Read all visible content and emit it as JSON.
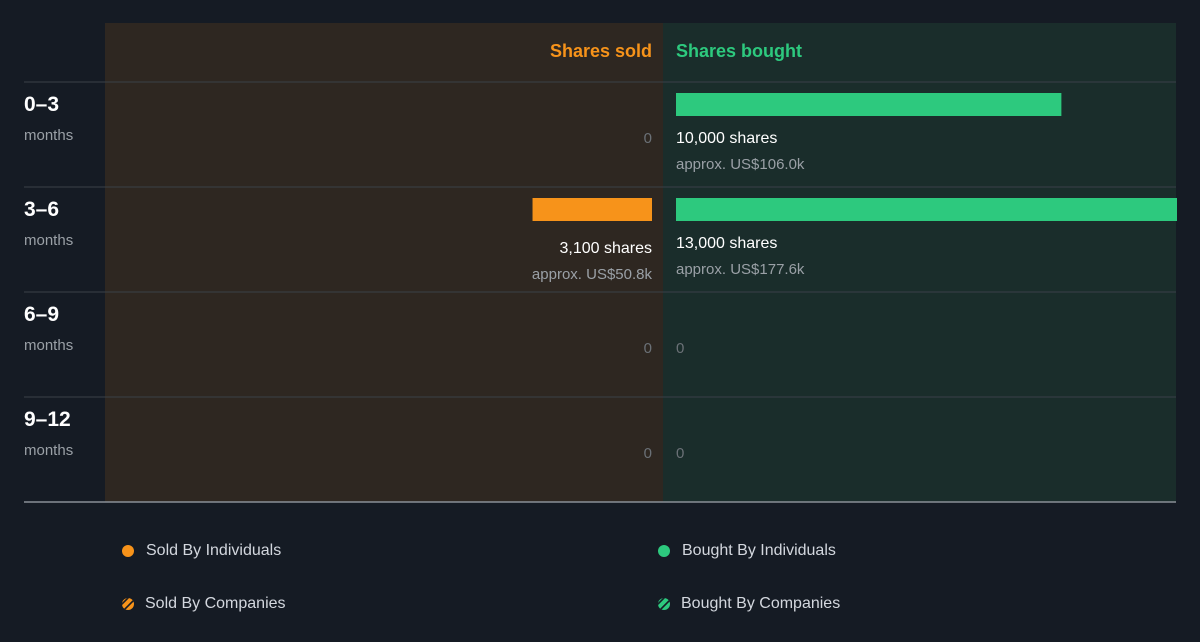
{
  "colors": {
    "background": "#151b24",
    "sold_panel": "#2e2721",
    "bought_panel": "#1a2d2b",
    "sold": "#f7931a",
    "bought": "#2dc97e",
    "grid": "#3a4048",
    "muted": "#9aa0a6",
    "zero": "#6b7177",
    "text": "#ffffff"
  },
  "chart_data": {
    "type": "bar",
    "layout": "diverging-horizontal",
    "headers": {
      "sold": "Shares sold",
      "bought": "Shares bought"
    },
    "categories": [
      {
        "period": "0–3",
        "unit": "months"
      },
      {
        "period": "3–6",
        "unit": "months"
      },
      {
        "period": "6–9",
        "unit": "months"
      },
      {
        "period": "9–12",
        "unit": "months"
      }
    ],
    "series": [
      {
        "name": "Shares sold",
        "values": [
          0,
          3100,
          0,
          0
        ],
        "labels": [
          "0",
          "3,100 shares",
          "0",
          "0"
        ],
        "approx": [
          "",
          "approx. US$50.8k",
          "",
          ""
        ]
      },
      {
        "name": "Shares bought",
        "values": [
          10000,
          13000,
          0,
          0
        ],
        "labels": [
          "10,000 shares",
          "13,000 shares",
          "0",
          "0"
        ],
        "approx": [
          "approx. US$106.0k",
          "approx. US$177.6k",
          "",
          ""
        ]
      }
    ],
    "max_value": 13000
  },
  "legend": [
    {
      "label": "Sold By Individuals",
      "icon": "sold-individuals-dot-icon",
      "style": "dot",
      "color": "#f7931a"
    },
    {
      "label": "Bought By Individuals",
      "icon": "bought-individuals-dot-icon",
      "style": "dot",
      "color": "#2dc97e"
    },
    {
      "label": "Sold By Companies",
      "icon": "sold-companies-hatched-icon",
      "style": "hatched",
      "color": "#f7931a"
    },
    {
      "label": "Bought By Companies",
      "icon": "bought-companies-hatched-icon",
      "style": "hatched",
      "color": "#2dc97e"
    }
  ]
}
